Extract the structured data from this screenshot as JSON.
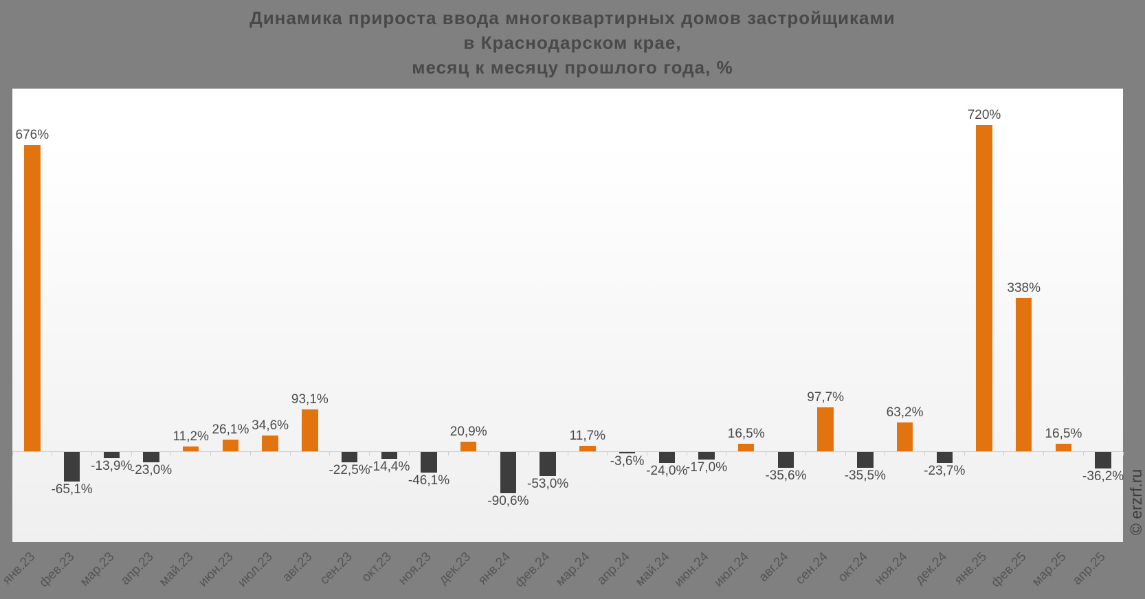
{
  "title": {
    "lines": [
      "Динамика прироста ввода многоквартирных домов застройщиками",
      "в Краснодарском крае,",
      "месяц к месяцу прошлого года, %"
    ]
  },
  "watermark": "© erzrf.ru",
  "colors": {
    "page_background": "#808080",
    "plot_background_top": "#ffffff",
    "plot_background_bottom": "#efefef",
    "positive_bar": "#e1740f",
    "negative_bar": "#3d3d3d",
    "axis_line": "#cccccc",
    "title_text": "#494949",
    "value_label_text": "#4a4a4a",
    "axis_label_text": "#545454",
    "watermark_text": "#3c3c3c"
  },
  "chart_data": {
    "type": "bar",
    "title": "Динамика прироста ввода многоквартирных домов застройщиками в Краснодарском крае, месяц к месяцу прошлого года, %",
    "xlabel": "",
    "ylabel": "",
    "ylim": [
      -200,
      800
    ],
    "grid": false,
    "legend": false,
    "categories": [
      "янв.23",
      "фев.23",
      "мар.23",
      "апр.23",
      "май.23",
      "июн.23",
      "июл.23",
      "авг.23",
      "сен.23",
      "окт.23",
      "ноя.23",
      "дек.23",
      "янв.24",
      "фев.24",
      "мар.24",
      "апр.24",
      "май.24",
      "июн.24",
      "июл.24",
      "авг.24",
      "сен.24",
      "окт.24",
      "ноя.24",
      "дек.24",
      "янв.25",
      "фев.25",
      "мар.25",
      "апр.25"
    ],
    "values": [
      676,
      -65.1,
      -13.9,
      -23.0,
      11.2,
      26.1,
      34.6,
      93.1,
      -22.5,
      -14.4,
      -46.1,
      20.9,
      -90.6,
      -53.0,
      11.7,
      -3.6,
      -24.0,
      -17.0,
      16.5,
      -35.6,
      97.7,
      -35.5,
      63.2,
      -23.7,
      720,
      338,
      16.5,
      -36.2
    ],
    "value_labels": [
      "676%",
      "-65,1%",
      "-13,9%",
      "-23,0%",
      "11,2%",
      "26,1%",
      "34,6%",
      "93,1%",
      "-22,5%",
      "-14,4%",
      "-46,1%",
      "20,9%",
      "-90,6%",
      "-53,0%",
      "11,7%",
      "-3,6%",
      "-24,0%",
      "-17,0%",
      "16,5%",
      "-35,6%",
      "97,7%",
      "-35,5%",
      "63,2%",
      "-23,7%",
      "720%",
      "338%",
      "16,5%",
      "-36,2%"
    ]
  }
}
